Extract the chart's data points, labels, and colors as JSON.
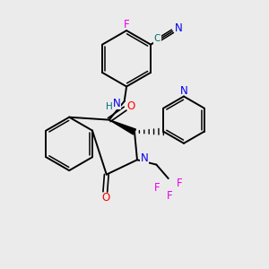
{
  "background_color": "#ebebeb",
  "bond_color": "#000000",
  "figsize": [
    3.0,
    3.0
  ],
  "dpi": 100,
  "colors": {
    "N": "#0000ee",
    "O": "#ff0000",
    "F": "#ee00ee",
    "C_cyan": "#007070",
    "N_cyan": "#0000ee",
    "H": "#007070"
  }
}
